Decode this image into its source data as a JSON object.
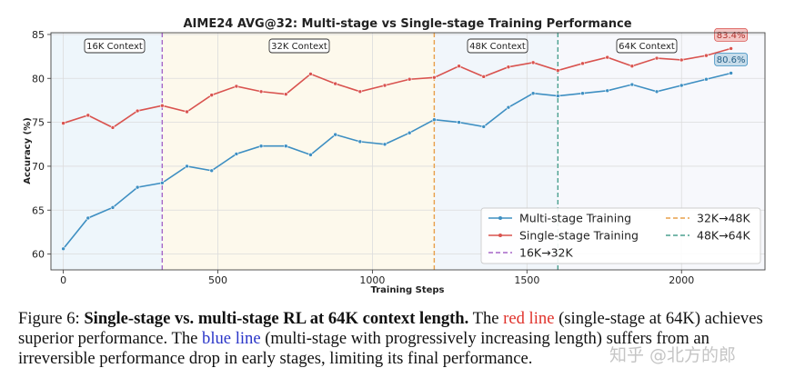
{
  "chart_data": {
    "type": "line",
    "title": "AIME24 AVG@32: Multi-stage vs Single-stage Training Performance",
    "xlabel": "Training Steps",
    "ylabel": "Accuracy (%)",
    "xlim": [
      -40,
      2270
    ],
    "ylim": [
      58.2,
      85.2
    ],
    "xticks": [
      0,
      500,
      1000,
      1500,
      2000
    ],
    "yticks": [
      60,
      65,
      70,
      75,
      80,
      85
    ],
    "grid": true,
    "legend_position": "lower-right",
    "regions": [
      {
        "label": "16K Context",
        "start": -40,
        "end": 320,
        "color": "#eef6fb"
      },
      {
        "label": "32K Context",
        "start": 320,
        "end": 1200,
        "color": "#fdf9ec"
      },
      {
        "label": "48K Context",
        "start": 1200,
        "end": 1600,
        "color": "#f1f6fb"
      },
      {
        "label": "64K Context",
        "start": 1600,
        "end": 2270,
        "color": "#f7f8fc"
      }
    ],
    "transitions": [
      {
        "name": "16K→32K",
        "x": 320,
        "color": "#a667c9"
      },
      {
        "name": "32K→48K",
        "x": 1200,
        "color": "#e8a04a"
      },
      {
        "name": "48K→64K",
        "x": 1600,
        "color": "#4aa08f"
      }
    ],
    "x": [
      0,
      80,
      160,
      240,
      320,
      400,
      480,
      560,
      640,
      720,
      800,
      880,
      960,
      1040,
      1120,
      1200,
      1280,
      1360,
      1440,
      1520,
      1600,
      1680,
      1760,
      1840,
      1920,
      2000,
      2080,
      2160
    ],
    "series": [
      {
        "name": "Multi-stage Training",
        "color": "#3e8fc2",
        "values": [
          60.6,
          64.1,
          65.3,
          67.6,
          68.1,
          70.0,
          69.5,
          71.4,
          72.3,
          72.3,
          71.3,
          73.6,
          72.8,
          72.5,
          73.8,
          75.3,
          75.0,
          74.5,
          76.7,
          78.3,
          78.0,
          78.3,
          78.6,
          79.3,
          78.5,
          79.2,
          79.9,
          80.6
        ],
        "end_label": "80.6%"
      },
      {
        "name": "Single-stage Training",
        "color": "#d9534f",
        "values": [
          74.9,
          75.8,
          74.4,
          76.3,
          76.9,
          76.2,
          78.1,
          79.1,
          78.5,
          78.2,
          80.5,
          79.4,
          78.5,
          79.2,
          79.9,
          80.1,
          81.4,
          80.2,
          81.3,
          81.8,
          80.9,
          81.7,
          82.4,
          81.4,
          82.3,
          82.1,
          82.6,
          83.4
        ],
        "end_label": "83.4%"
      }
    ]
  },
  "caption": {
    "fig_label": "Figure 6: ",
    "bold": "Single-stage vs. multi-stage RL at 64K context length.",
    "t1": " The ",
    "red_text": "red line",
    "t2": " (single-stage at 64K) achieves superior performance. The ",
    "blue_text": "blue line",
    "t3": " (multi-stage with progressively increasing length) suffers from an irreversible performance drop in early stages, limiting its final performance."
  },
  "watermark": "知乎 @北方的郎"
}
